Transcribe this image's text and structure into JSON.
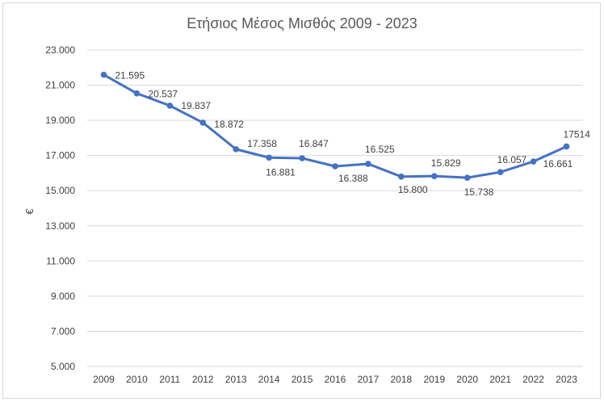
{
  "chart_data": {
    "type": "line",
    "title": "Ετήσιος Μέσος Μισθός 2009 - 2023",
    "xlabel": "",
    "ylabel": "€",
    "categories": [
      "2009",
      "2010",
      "2011",
      "2012",
      "2013",
      "2014",
      "2015",
      "2016",
      "2017",
      "2018",
      "2019",
      "2020",
      "2021",
      "2022",
      "2023"
    ],
    "series": [
      {
        "values": [
          21595,
          20537,
          19837,
          18872,
          17358,
          16881,
          16847,
          16388,
          16525,
          15800,
          15829,
          15738,
          16057,
          16661,
          17514
        ],
        "data_labels": [
          "21.595",
          "20.537",
          "19.837",
          "18.872",
          "17.358",
          "16.881",
          "16.847",
          "16.388",
          "16.525",
          "15.800",
          "15.829",
          "15.738",
          "16.057",
          "16.661",
          "17514"
        ],
        "color": "#4472c4"
      }
    ],
    "ylim": [
      5000,
      23000
    ],
    "yticks": [
      5000,
      7000,
      9000,
      11000,
      13000,
      15000,
      17000,
      19000,
      21000,
      23000
    ],
    "ytick_labels": [
      "5.000",
      "7.000",
      "9.000",
      "11.000",
      "13.000",
      "15.000",
      "17.000",
      "19.000",
      "21.000",
      "23.000"
    ],
    "grid": true,
    "gridline_color": "#d9d9d9",
    "legend": "none"
  }
}
